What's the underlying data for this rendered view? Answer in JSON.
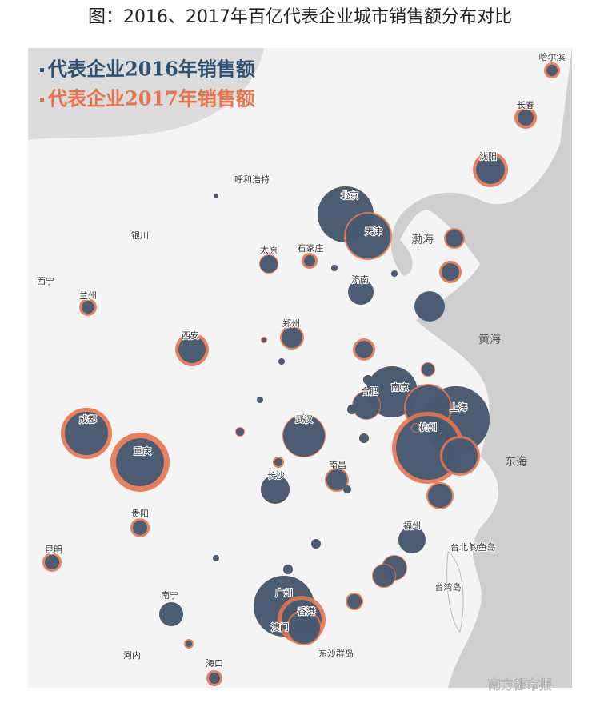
{
  "header": {
    "title": "图：2016、2017年百亿代表企业城市销售额分布对比"
  },
  "legend": [
    "代表企业2016年销售额",
    "代表企业2017年销售额"
  ],
  "cities": [
    "哈尔滨",
    "长春",
    "沈阳",
    "呼和浩特",
    "北京",
    "天津",
    "银川",
    "太原",
    "石家庄",
    "西宁",
    "兰州",
    "济南",
    "西安",
    "郑州",
    "合肥",
    "南京",
    "上海",
    "成都",
    "武汉",
    "杭州",
    "重庆",
    "长沙",
    "南昌",
    "贵阳",
    "福州",
    "台北",
    "钓鱼岛",
    "昆明",
    "台湾岛",
    "南宁",
    "广州",
    "香港",
    "澳门",
    "海口",
    "河内",
    "东沙群岛"
  ],
  "seas": [
    "渤海",
    "黄海",
    "东海"
  ],
  "watermark": "南方都市报"
}
